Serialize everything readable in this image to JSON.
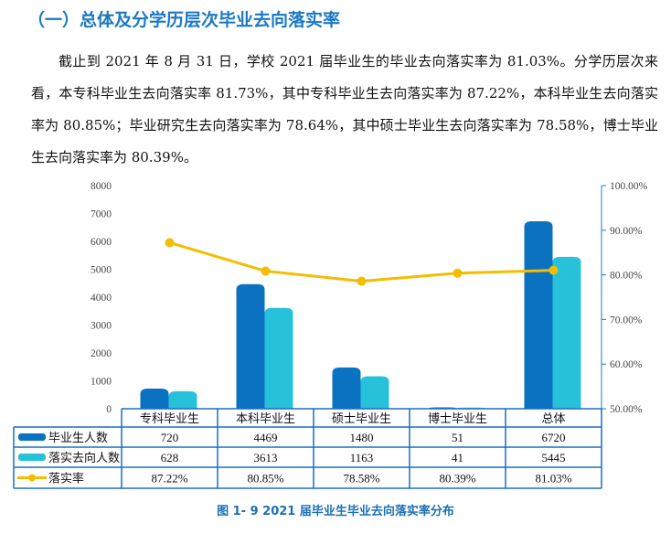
{
  "heading": "（一）总体及分学历层次毕业去向落实率",
  "paragraph": "截止到 2021 年 8 月 31 日，学校 2021 届毕业生的毕业去向落实率为 81.03%。分学历层次来看，本专科毕业生去向落实率 81.73%，其中专科毕业生去向落实率为 87.22%，本科毕业生去向落实率为 80.85%；毕业研究生去向落实率为 78.64%，其中硕士毕业生去向落实率为 78.58%，博士毕业生去向落实率为 80.39%。",
  "caption": "图 1- 9  2021 届毕业生毕业去向落实率分布",
  "chart_data": {
    "type": "bar+line",
    "categories": [
      "专科毕业生",
      "本科毕业生",
      "硕士毕业生",
      "博士毕业生",
      "总体"
    ],
    "series": [
      {
        "name": "毕业生人数",
        "type": "bar",
        "axis": "left",
        "color": "#0a72c0",
        "values": [
          720,
          4469,
          1480,
          51,
          6720
        ],
        "labels": [
          "720",
          "4469",
          "1480",
          "51",
          "6720"
        ]
      },
      {
        "name": "落实去向人数",
        "type": "bar",
        "axis": "left",
        "color": "#27c1d9",
        "values": [
          628,
          3613,
          1163,
          41,
          5445
        ],
        "labels": [
          "628",
          "3613",
          "1163",
          "41",
          "5445"
        ]
      },
      {
        "name": "落实率",
        "type": "line",
        "axis": "right",
        "color": "#f5bd00",
        "values": [
          87.22,
          80.85,
          78.58,
          80.39,
          81.03
        ],
        "labels": [
          "87.22%",
          "80.85%",
          "78.58%",
          "80.39%",
          "81.03%"
        ]
      }
    ],
    "y_left": {
      "range": [
        0,
        8000
      ],
      "ticks": [
        "0",
        "1000",
        "2000",
        "3000",
        "4000",
        "5000",
        "6000",
        "7000",
        "8000"
      ]
    },
    "y_right": {
      "range": [
        50,
        100
      ],
      "ticks": [
        "50.00%",
        "60.00%",
        "70.00%",
        "80.00%",
        "90.00%",
        "100.00%"
      ]
    },
    "data_table": true,
    "grid": false
  }
}
